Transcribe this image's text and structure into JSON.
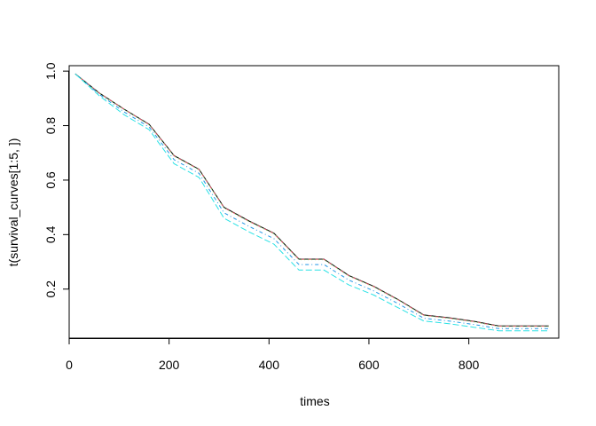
{
  "chart_data": {
    "type": "line",
    "title": "",
    "xlabel": "times",
    "ylabel": "t(survival_curves[1:5, ])",
    "xlim": [
      0,
      980
    ],
    "ylim": [
      0.02,
      1.02
    ],
    "x_ticks": [
      {
        "value": 200,
        "label": "200"
      },
      {
        "value": 400,
        "label": "400"
      },
      {
        "value": 600,
        "label": "600"
      },
      {
        "value": 800,
        "label": "800"
      }
    ],
    "x_ticks_extra": [
      {
        "value": 0,
        "label": "0"
      }
    ],
    "y_ticks": [
      {
        "value": 0.2,
        "label": "0.2"
      },
      {
        "value": 0.4,
        "label": "0.4"
      },
      {
        "value": 0.6,
        "label": "0.6"
      },
      {
        "value": 0.8,
        "label": "0.8"
      },
      {
        "value": 1.0,
        "label": "1.0"
      }
    ],
    "grid": false,
    "legend": "none",
    "x": [
      12,
      60,
      110,
      160,
      210,
      260,
      310,
      360,
      410,
      460,
      510,
      560,
      610,
      660,
      710,
      760,
      810,
      860,
      910,
      960
    ],
    "series": [
      {
        "color": "#000000",
        "dash": "solid",
        "values": [
          0.99,
          0.92,
          0.86,
          0.805,
          0.69,
          0.64,
          0.5,
          0.45,
          0.405,
          0.31,
          0.31,
          0.25,
          0.21,
          0.16,
          0.105,
          0.095,
          0.082,
          0.065,
          0.065,
          0.065
        ]
      },
      {
        "color": "#DF536B",
        "dash": "dashed",
        "values": [
          0.99,
          0.92,
          0.86,
          0.804,
          0.689,
          0.639,
          0.499,
          0.449,
          0.404,
          0.309,
          0.309,
          0.249,
          0.209,
          0.159,
          0.104,
          0.094,
          0.081,
          0.064,
          0.064,
          0.064
        ]
      },
      {
        "color": "#61D04F",
        "dash": "dotted",
        "values": [
          0.99,
          0.919,
          0.859,
          0.803,
          0.688,
          0.638,
          0.498,
          0.448,
          0.403,
          0.308,
          0.308,
          0.248,
          0.208,
          0.158,
          0.103,
          0.093,
          0.08,
          0.063,
          0.063,
          0.063
        ]
      },
      {
        "color": "#2297E6",
        "dash": "dotdash",
        "values": [
          0.99,
          0.915,
          0.85,
          0.795,
          0.675,
          0.625,
          0.48,
          0.43,
          0.385,
          0.29,
          0.29,
          0.233,
          0.193,
          0.145,
          0.093,
          0.083,
          0.07,
          0.055,
          0.055,
          0.055
        ]
      },
      {
        "color": "#28E2E5",
        "dash": "longdash",
        "values": [
          0.99,
          0.91,
          0.84,
          0.785,
          0.66,
          0.61,
          0.46,
          0.41,
          0.365,
          0.27,
          0.27,
          0.215,
          0.178,
          0.13,
          0.083,
          0.073,
          0.06,
          0.047,
          0.047,
          0.047
        ]
      }
    ]
  }
}
